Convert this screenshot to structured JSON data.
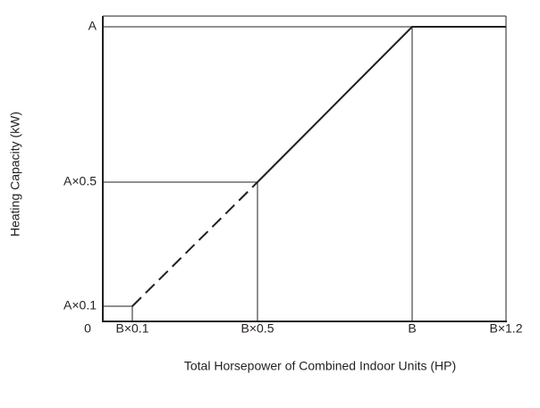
{
  "y_axis": {
    "label": "Heating Capacity (kW)",
    "ticks": [
      "A",
      "A×0.5",
      "A×0.1"
    ]
  },
  "x_axis": {
    "label": "Total Horsepower of Combined Indoor Units (HP)",
    "ticks": [
      "0",
      "B×0.1",
      "B×0.5",
      "B",
      "B×1.2"
    ]
  }
}
